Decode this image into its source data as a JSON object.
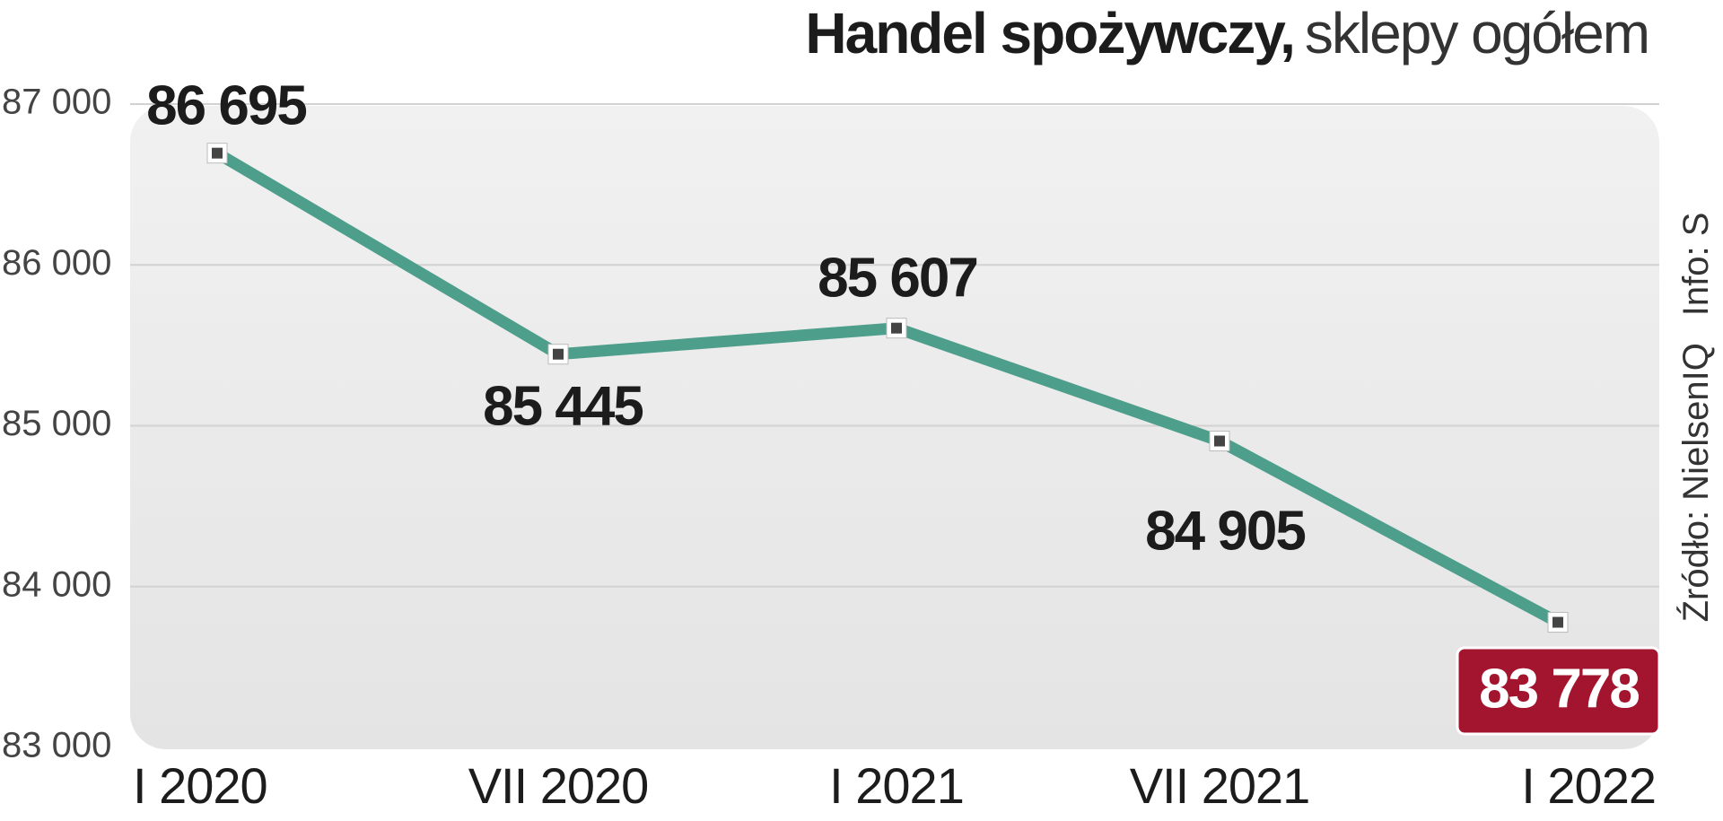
{
  "chart_data": {
    "type": "line",
    "title": "Handel spożywczy,",
    "subtitle": "sklepy ogółem",
    "source": "Źródło: NielsenIQ",
    "credit": "Info: S",
    "categories": [
      "I 2020",
      "VII 2020",
      "I 2021",
      "VII 2021",
      "I 2022"
    ],
    "series": [
      {
        "name": "sklepy ogółem",
        "color": "#4e9e8c",
        "values": [
          86695,
          85445,
          85607,
          84905,
          83778
        ],
        "value_labels": [
          "86 695",
          "85 445",
          "85 607",
          "84 905",
          "83 778"
        ]
      }
    ],
    "highlight_color": "#a3152f",
    "ylim": [
      83000,
      87000
    ],
    "yticks": [
      {
        "value": 83000,
        "label": "83 000"
      },
      {
        "value": 84000,
        "label": "84 000"
      },
      {
        "value": 85000,
        "label": "85 000"
      },
      {
        "value": 86000,
        "label": "86 000"
      },
      {
        "value": 87000,
        "label": "87 000"
      }
    ],
    "grid": true
  }
}
